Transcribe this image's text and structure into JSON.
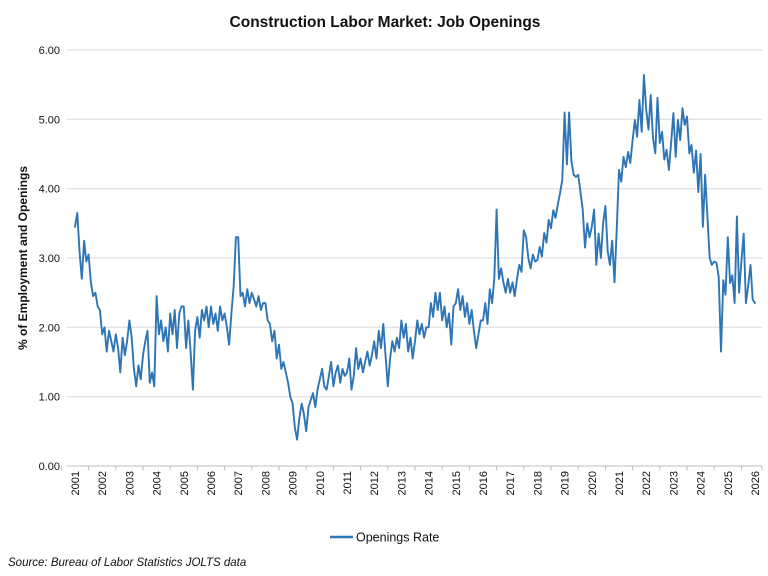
{
  "title": "Construction Labor Market: Job Openings",
  "source_note": "Source: Bureau of Labor Statistics JOLTS data",
  "legend": {
    "series_label": "Openings Rate",
    "line_color": "#2E75B6"
  },
  "y_axis": {
    "title": "% of Employment and Openings",
    "min": 0,
    "max": 6,
    "step": 1,
    "tick_labels": [
      "0.00",
      "1.00",
      "2.00",
      "3.00",
      "4.00",
      "5.00",
      "6.00"
    ]
  },
  "x_axis": {
    "tick_labels": [
      "2001",
      "2002",
      "2003",
      "2004",
      "2005",
      "2006",
      "2007",
      "2008",
      "2009",
      "2010",
      "2011",
      "2012",
      "2013",
      "2014",
      "2015",
      "2016",
      "2017",
      "2018",
      "2019",
      "2020",
      "2021",
      "2022",
      "2023",
      "2024",
      "2025",
      "2026"
    ]
  },
  "colors": {
    "line": "#2E75B6",
    "gridline": "#D9D9D9",
    "axis_line": "#BFBFBF",
    "text": "#111111"
  },
  "chart_data": {
    "type": "line",
    "title": "Construction Labor Market: Job Openings",
    "xlabel": "",
    "ylabel": "% of Employment and Openings",
    "ylim": [
      0,
      6
    ],
    "grid": "horizontal-only",
    "legend_position": "bottom-center",
    "x_tick_years": [
      2001,
      2002,
      2003,
      2004,
      2005,
      2006,
      2007,
      2008,
      2009,
      2010,
      2011,
      2012,
      2013,
      2014,
      2015,
      2016,
      2017,
      2018,
      2019,
      2020,
      2021,
      2022,
      2023,
      2024,
      2025,
      2026
    ],
    "series": [
      {
        "name": "Openings Rate",
        "color": "#2E75B6",
        "frequency": "monthly",
        "start": "2001-01",
        "end": "2026-01",
        "values": [
          3.45,
          3.65,
          3.1,
          2.7,
          3.25,
          2.95,
          3.05,
          2.65,
          2.45,
          2.5,
          2.3,
          2.25,
          1.9,
          2.0,
          1.65,
          1.95,
          1.8,
          1.65,
          1.9,
          1.7,
          1.35,
          1.85,
          1.6,
          1.8,
          2.1,
          1.85,
          1.4,
          1.15,
          1.45,
          1.25,
          1.6,
          1.8,
          1.95,
          1.2,
          1.35,
          1.15,
          2.45,
          1.9,
          2.1,
          1.8,
          2.0,
          1.65,
          2.2,
          1.9,
          2.25,
          1.7,
          2.2,
          2.3,
          2.3,
          1.7,
          2.1,
          1.65,
          1.1,
          1.95,
          2.15,
          1.85,
          2.25,
          2.1,
          2.3,
          2.0,
          2.3,
          2.05,
          2.2,
          1.95,
          2.3,
          2.1,
          2.2,
          2.0,
          1.75,
          2.2,
          2.6,
          3.3,
          3.3,
          2.45,
          2.5,
          2.3,
          2.55,
          2.35,
          2.5,
          2.4,
          2.3,
          2.45,
          2.25,
          2.35,
          2.35,
          2.1,
          2.05,
          1.8,
          1.95,
          1.55,
          1.75,
          1.4,
          1.5,
          1.35,
          1.2,
          1.0,
          0.9,
          0.55,
          0.38,
          0.7,
          0.9,
          0.75,
          0.5,
          0.85,
          0.95,
          1.05,
          0.85,
          1.1,
          1.25,
          1.4,
          1.15,
          1.1,
          1.3,
          1.5,
          1.15,
          1.35,
          1.45,
          1.2,
          1.4,
          1.3,
          1.35,
          1.55,
          1.1,
          1.3,
          1.7,
          1.4,
          1.55,
          1.35,
          1.5,
          1.65,
          1.45,
          1.6,
          1.8,
          1.55,
          1.95,
          1.7,
          2.05,
          1.6,
          1.15,
          1.55,
          1.8,
          1.65,
          1.85,
          1.7,
          2.1,
          1.85,
          2.05,
          1.65,
          1.85,
          1.55,
          1.8,
          2.1,
          1.9,
          2.05,
          1.85,
          2.0,
          2.0,
          2.35,
          2.15,
          2.5,
          2.25,
          2.5,
          2.1,
          2.3,
          2.0,
          2.2,
          1.75,
          2.3,
          2.35,
          2.55,
          2.25,
          2.45,
          2.15,
          2.35,
          2.05,
          2.25,
          1.95,
          1.7,
          1.9,
          2.1,
          2.1,
          2.35,
          2.05,
          2.55,
          2.35,
          2.7,
          3.7,
          2.7,
          2.85,
          2.65,
          2.5,
          2.7,
          2.5,
          2.65,
          2.45,
          2.7,
          2.9,
          2.8,
          3.4,
          3.3,
          3.0,
          2.85,
          3.05,
          2.95,
          2.97,
          3.16,
          3.02,
          3.36,
          3.22,
          3.55,
          3.43,
          3.69,
          3.58,
          3.77,
          3.94,
          4.13,
          5.1,
          4.35,
          5.1,
          4.4,
          4.2,
          4.17,
          4.2,
          3.95,
          3.7,
          3.15,
          3.5,
          3.3,
          3.45,
          3.7,
          2.9,
          3.35,
          3.0,
          3.5,
          3.75,
          3.1,
          2.9,
          3.25,
          2.65,
          3.4,
          4.27,
          4.1,
          4.46,
          4.31,
          4.53,
          4.37,
          4.7,
          4.99,
          4.75,
          5.28,
          4.82,
          5.64,
          5.14,
          4.85,
          5.35,
          4.73,
          4.51,
          5.31,
          4.66,
          4.82,
          4.42,
          4.56,
          4.27,
          4.66,
          5.09,
          4.46,
          4.99,
          4.7,
          5.16,
          4.92,
          5.04,
          4.51,
          4.63,
          4.23,
          4.55,
          3.95,
          4.5,
          3.45,
          4.2,
          3.6,
          3.0,
          2.9,
          2.95,
          2.93,
          2.73,
          1.65,
          2.68,
          2.47,
          3.3,
          2.64,
          2.75,
          2.35,
          3.6,
          2.5,
          2.95,
          3.35,
          2.35,
          2.6,
          2.9,
          2.4,
          2.35
        ]
      }
    ]
  }
}
